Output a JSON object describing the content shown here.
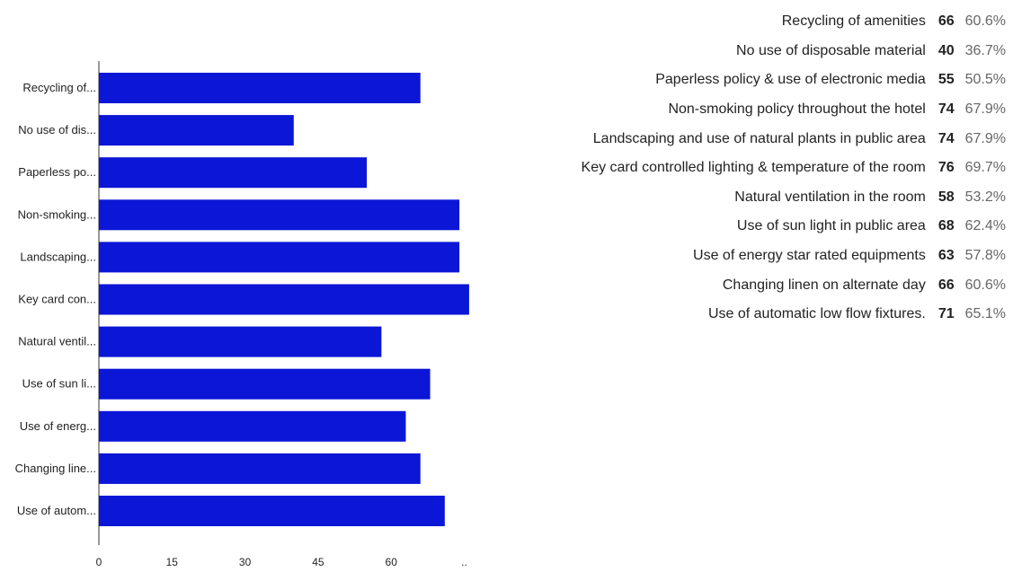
{
  "chart_data": {
    "type": "bar",
    "orientation": "horizontal",
    "categories": [
      "Recycling of...",
      "No use of dis...",
      "Paperless po...",
      "Non-smoking...",
      "Landscaping...",
      "Key card con...",
      "Natural ventil...",
      "Use of sun li...",
      "Use of energ...",
      "Changing line...",
      "Use of autom..."
    ],
    "values": [
      66,
      40,
      55,
      74,
      74,
      76,
      58,
      68,
      63,
      66,
      71
    ],
    "xlim": [
      0,
      75
    ],
    "xticks": [
      "0",
      "15",
      "30",
      "45",
      "60",
      ".."
    ],
    "bar_color": "#0b16d6",
    "grid": false
  },
  "summary": {
    "rows": [
      {
        "label": "Recycling of amenities",
        "count": "66",
        "percent": "60.6%"
      },
      {
        "label": "No use of disposable material",
        "count": "40",
        "percent": "36.7%"
      },
      {
        "label": "Paperless policy & use of electronic media",
        "count": "55",
        "percent": "50.5%"
      },
      {
        "label": "Non-smoking policy throughout the hotel",
        "count": "74",
        "percent": "67.9%"
      },
      {
        "label": "Landscaping and use of natural plants in public area",
        "count": "74",
        "percent": "67.9%"
      },
      {
        "label": "Key card controlled lighting & temperature of the room",
        "count": "76",
        "percent": "69.7%"
      },
      {
        "label": "Natural ventilation in the room",
        "count": "58",
        "percent": "53.2%"
      },
      {
        "label": "Use of sun light in public area",
        "count": "68",
        "percent": "62.4%"
      },
      {
        "label": "Use of energy star rated equipments",
        "count": "63",
        "percent": "57.8%"
      },
      {
        "label": "Changing linen on alternate day",
        "count": "66",
        "percent": "60.6%"
      },
      {
        "label": "Use of automatic low flow fixtures.",
        "count": "71",
        "percent": "65.1%"
      }
    ]
  }
}
